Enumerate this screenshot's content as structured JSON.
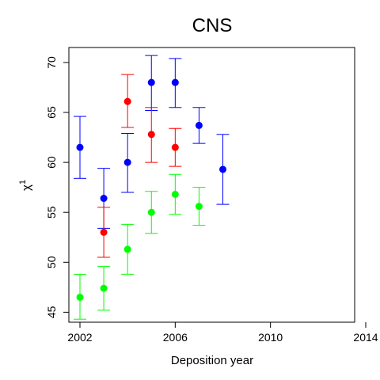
{
  "chart_data": {
    "type": "scatter",
    "title": "CNS",
    "xlabel": "Deposition year",
    "ylabel": "χ",
    "ylabel_superscript": "1",
    "xlim": [
      2002,
      2014
    ],
    "ylim": [
      44,
      71.5
    ],
    "xticks": [
      2002,
      2006,
      2010,
      2014
    ],
    "yticks": [
      45,
      50,
      55,
      60,
      65,
      70
    ],
    "grid": false,
    "series": [
      {
        "color": "#0000ff",
        "points": [
          {
            "x": 2002,
            "y": 61.5,
            "low": 58.4,
            "high": 64.6
          },
          {
            "x": 2003,
            "y": 56.4,
            "low": 53.4,
            "high": 59.4
          },
          {
            "x": 2004,
            "y": 60.0,
            "low": 57.0,
            "high": 62.9
          },
          {
            "x": 2005,
            "y": 68.0,
            "low": 65.2,
            "high": 70.7
          },
          {
            "x": 2006,
            "y": 68.0,
            "low": 65.5,
            "high": 70.4
          },
          {
            "x": 2007,
            "y": 63.7,
            "low": 61.9,
            "high": 65.5
          },
          {
            "x": 2008,
            "y": 59.3,
            "low": 55.8,
            "high": 62.8
          }
        ]
      },
      {
        "color": "#ff0000",
        "points": [
          {
            "x": 2003,
            "y": 53.0,
            "low": 50.5,
            "high": 55.5
          },
          {
            "x": 2004,
            "y": 66.1,
            "low": 63.5,
            "high": 68.8
          },
          {
            "x": 2005,
            "y": 62.8,
            "low": 60.0,
            "high": 65.5
          },
          {
            "x": 2006,
            "y": 61.5,
            "low": 59.6,
            "high": 63.4
          }
        ]
      },
      {
        "color": "#00ff00",
        "points": [
          {
            "x": 2002,
            "y": 46.5,
            "low": 44.3,
            "high": 48.8
          },
          {
            "x": 2003,
            "y": 47.4,
            "low": 45.2,
            "high": 49.6
          },
          {
            "x": 2004,
            "y": 51.3,
            "low": 48.8,
            "high": 53.8
          },
          {
            "x": 2005,
            "y": 55.0,
            "low": 52.9,
            "high": 57.1
          },
          {
            "x": 2006,
            "y": 56.8,
            "low": 54.8,
            "high": 58.8
          },
          {
            "x": 2007,
            "y": 55.6,
            "low": 53.7,
            "high": 57.5
          }
        ]
      }
    ]
  }
}
